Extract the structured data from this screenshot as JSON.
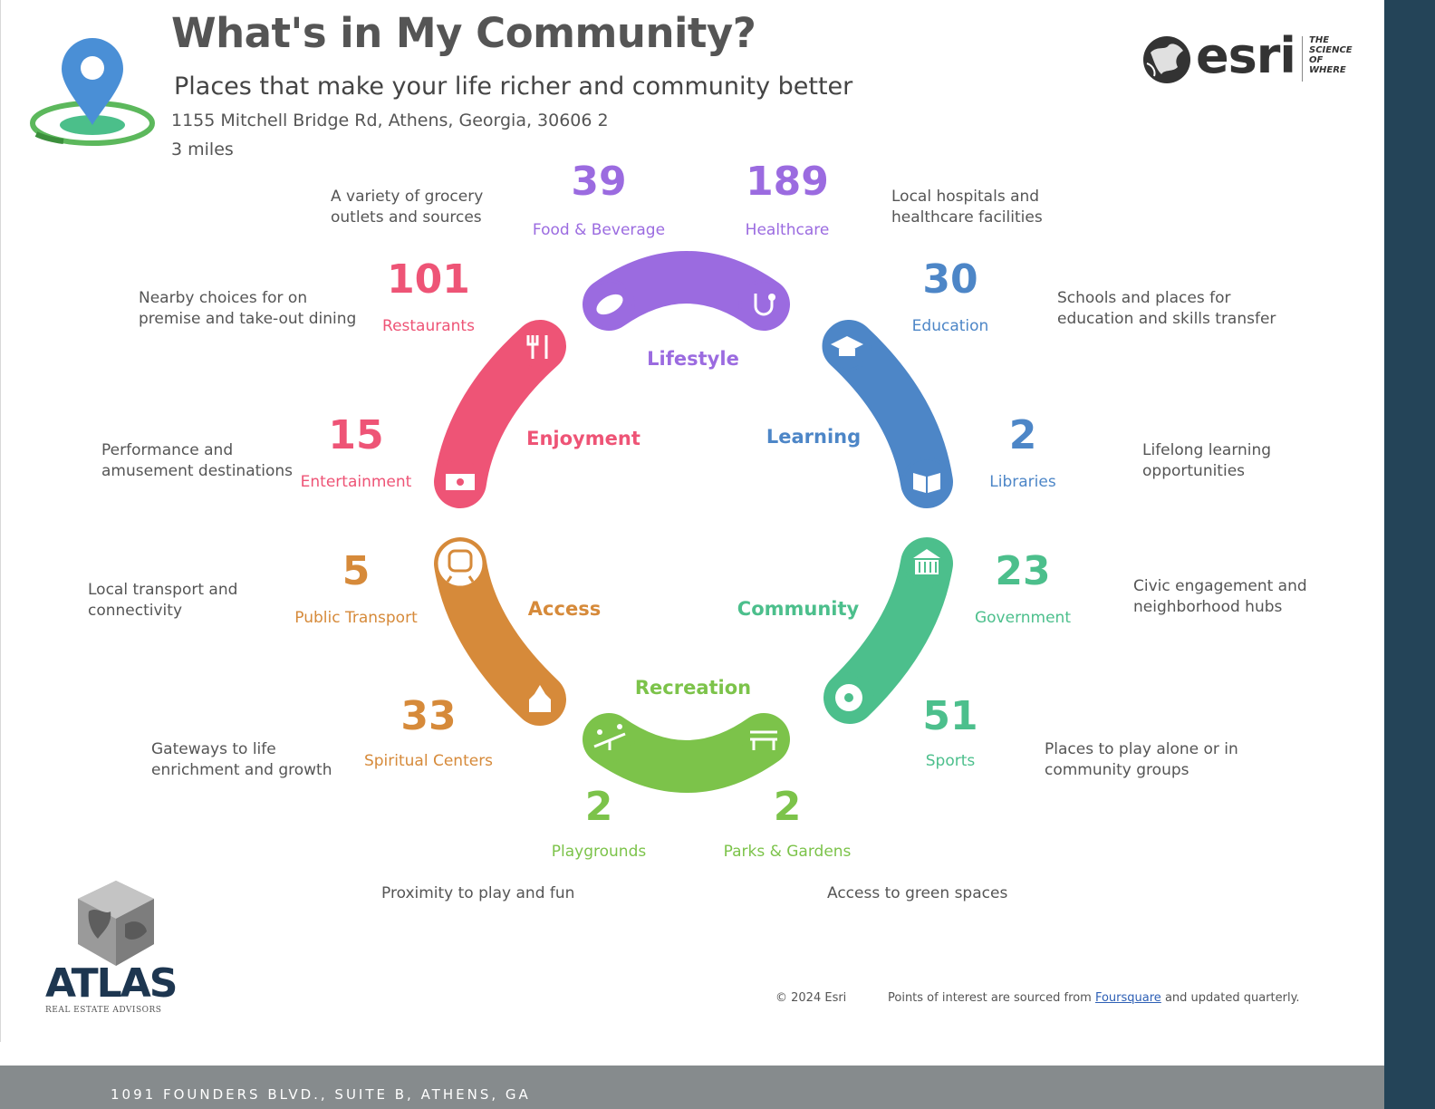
{
  "header": {
    "title": "What's in My Community?",
    "subtitle": "Places that make your life richer and community better",
    "address": "1155 Mitchell Bridge Rd, Athens, Georgia, 30606 2",
    "radius": "3 miles"
  },
  "esri_logo": {
    "word": "esri",
    "tagline_1": "THE",
    "tagline_2": "SCIENCE",
    "tagline_3": "OF",
    "tagline_4": "WHERE"
  },
  "colors": {
    "lifestyle": "#9b6be0",
    "education": "#4d86c7",
    "community": "#4cbf8c",
    "recreation": "#7cc34a",
    "access": "#d68a3a",
    "enjoyment": "#ee5476"
  },
  "groups": {
    "lifestyle": "Lifestyle",
    "learning": "Learning",
    "community": "Community",
    "recreation": "Recreation",
    "access": "Access",
    "enjoyment": "Enjoyment"
  },
  "categories": {
    "food": {
      "count": "39",
      "label": "Food & Beverage",
      "desc_1": "A variety of grocery",
      "desc_2": "outlets and sources"
    },
    "healthcare": {
      "count": "189",
      "label": "Healthcare",
      "desc_1": "Local hospitals and",
      "desc_2": "healthcare facilities"
    },
    "education": {
      "count": "30",
      "label": "Education",
      "desc_1": "Schools and places for",
      "desc_2": "education and skills transfer"
    },
    "libraries": {
      "count": "2",
      "label": "Libraries",
      "desc_1": "Lifelong learning",
      "desc_2": "opportunities"
    },
    "government": {
      "count": "23",
      "label": "Government",
      "desc_1": "Civic engagement and",
      "desc_2": "neighborhood hubs"
    },
    "sports": {
      "count": "51",
      "label": "Sports",
      "desc_1": "Places to play alone or in",
      "desc_2": "community groups"
    },
    "parks": {
      "count": "2",
      "label": "Parks & Gardens",
      "desc_1": "Access to green spaces"
    },
    "playgrounds": {
      "count": "2",
      "label": "Playgrounds",
      "desc_1": "Proximity to play and fun"
    },
    "spiritual": {
      "count": "33",
      "label": "Spiritual Centers",
      "desc_1": "Gateways to life",
      "desc_2": "enrichment and growth"
    },
    "transport": {
      "count": "5",
      "label": "Public Transport",
      "desc_1": "Local transport and",
      "desc_2": "connectivity"
    },
    "entertainment": {
      "count": "15",
      "label": "Entertainment",
      "desc_1": "Performance and",
      "desc_2": "amusement destinations"
    },
    "restaurants": {
      "count": "101",
      "label": "Restaurants",
      "desc_1": "Nearby choices for on",
      "desc_2": "premise and take-out dining"
    }
  },
  "footer": {
    "copyright": "© 2024 Esri",
    "source_pre": "Points of interest are sourced from",
    "source_link": "Foursquare",
    "source_post": "and updated quarterly.",
    "address": "1091 FOUNDERS BLVD., SUITE B, ATHENS, GA"
  },
  "atlas_logo": {
    "word": "ATLAS",
    "sub": "REAL ESTATE ADVISORS"
  }
}
